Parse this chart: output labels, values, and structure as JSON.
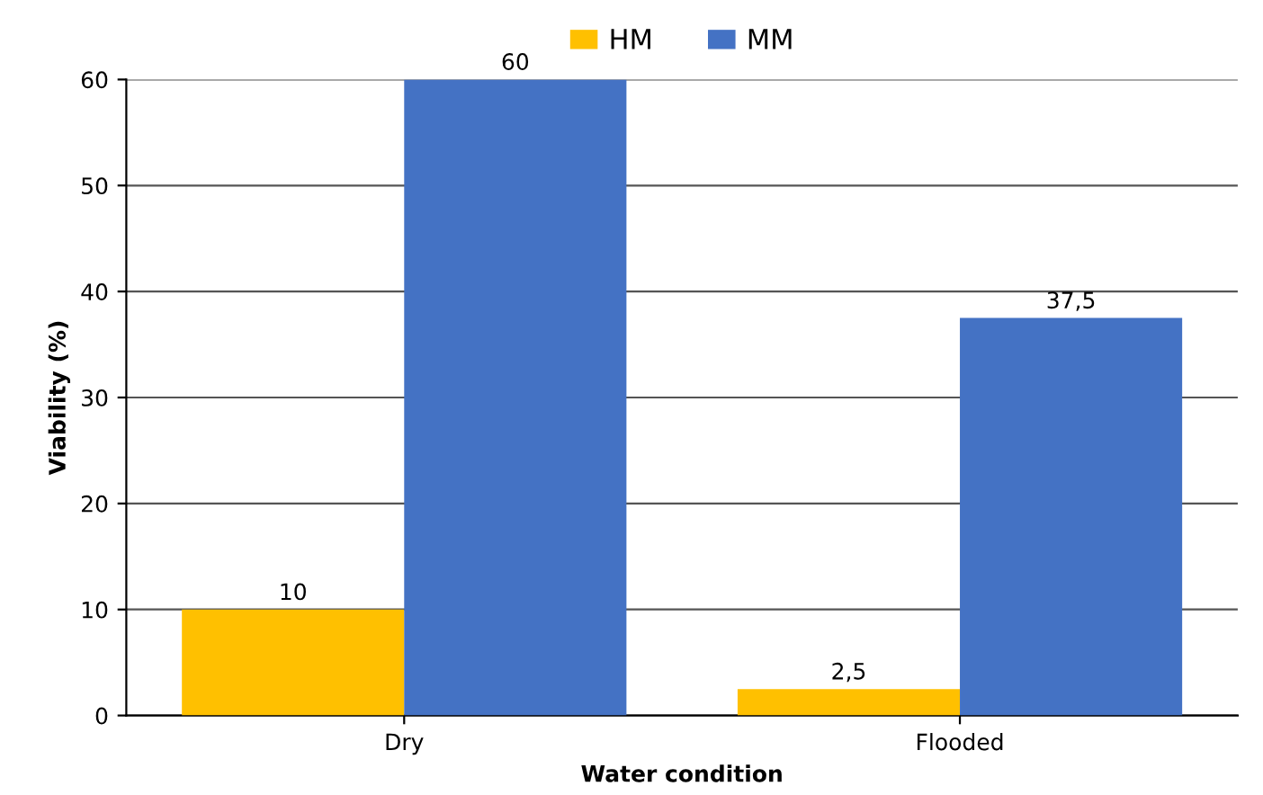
{
  "chart_data": {
    "type": "bar",
    "xlabel": "Water condition",
    "ylabel": "Viability (%)",
    "categories": [
      "Dry",
      "Flooded"
    ],
    "series": [
      {
        "name": "HM",
        "color": "#ffc000",
        "values": [
          10,
          2.5
        ],
        "value_labels": [
          "10",
          "2,5"
        ]
      },
      {
        "name": "MM",
        "color": "#4472c4",
        "values": [
          60,
          37.5
        ],
        "value_labels": [
          "60",
          "37,5"
        ]
      }
    ],
    "ylim": [
      0,
      60
    ],
    "yticks": [
      0,
      10,
      20,
      30,
      40,
      50,
      60
    ],
    "grid": "y",
    "legend": "top"
  }
}
